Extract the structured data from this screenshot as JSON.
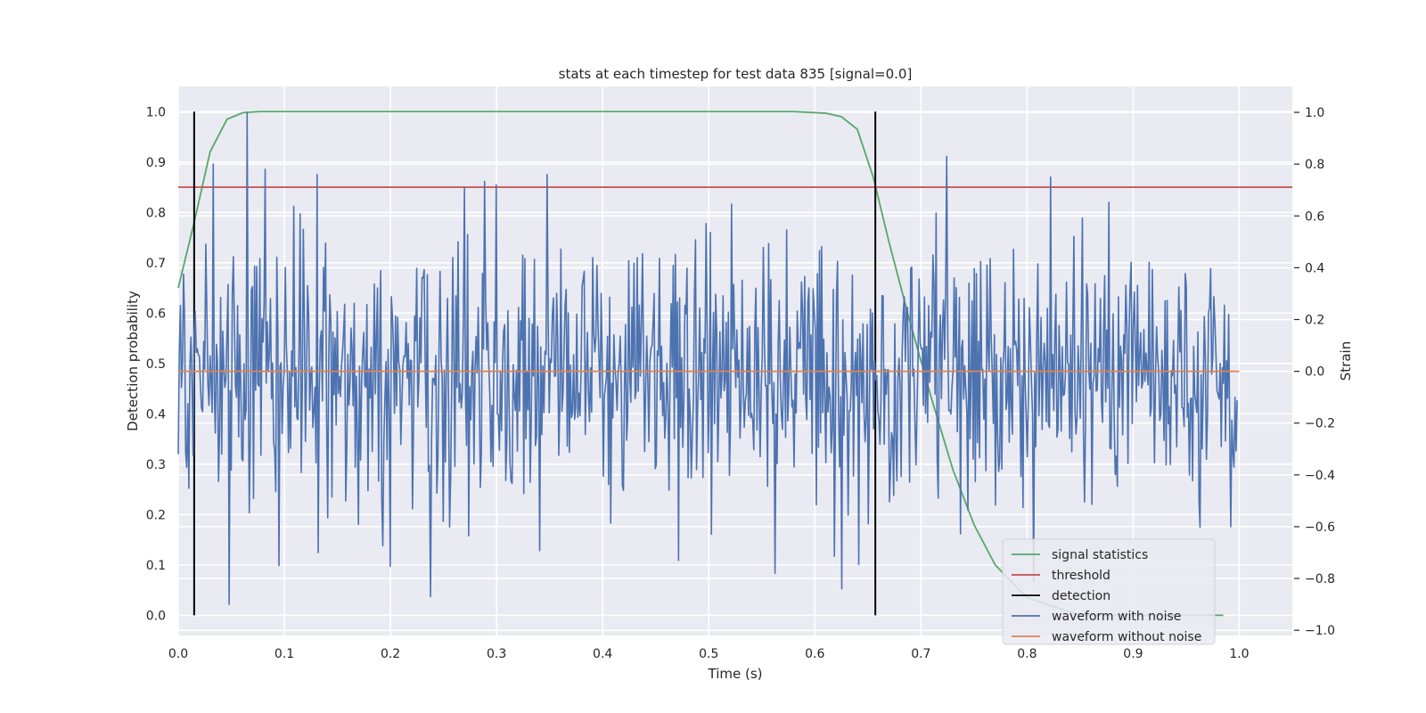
{
  "chart_data": {
    "type": "line",
    "title": "stats at each timestep for test data 835 [signal=0.0]",
    "xlabel": "Time (s)",
    "ylabel": "Detection probability",
    "ylabel_right": "Strain",
    "xlim": [
      0.0,
      1.05
    ],
    "ylim": [
      -0.04,
      1.05
    ],
    "ylim_right": [
      -1.02,
      1.1
    ],
    "x_ticks": [
      "0.0",
      "0.1",
      "0.2",
      "0.3",
      "0.4",
      "0.5",
      "0.6",
      "0.7",
      "0.8",
      "0.9",
      "1.0"
    ],
    "y_ticks": [
      "0.0",
      "0.1",
      "0.2",
      "0.3",
      "0.4",
      "0.5",
      "0.6",
      "0.7",
      "0.8",
      "0.9",
      "1.0"
    ],
    "y_ticks_right": [
      "−1.0",
      "−0.8",
      "−0.6",
      "−0.4",
      "−0.2",
      "0.0",
      "0.2",
      "0.4",
      "0.6",
      "0.8",
      "1.0"
    ],
    "grid": true,
    "legend_position": "lower-right",
    "colors": {
      "background": "#eaeaf2",
      "grid": "#ffffff",
      "signal": "#55a868",
      "threshold": "#c44e52",
      "detection": "#000000",
      "waveform_noise": "#4c72b0",
      "waveform_clean": "#dd8452"
    },
    "series": [
      {
        "name": "signal statistics",
        "axis": "left",
        "x": [
          0.0,
          0.015,
          0.03,
          0.046,
          0.061,
          0.076,
          0.1,
          0.2,
          0.3,
          0.4,
          0.5,
          0.58,
          0.61,
          0.625,
          0.64,
          0.655,
          0.67,
          0.69,
          0.71,
          0.73,
          0.75,
          0.77,
          0.8,
          0.85,
          0.9,
          0.95,
          0.985
        ],
        "y": [
          0.65,
          0.78,
          0.92,
          0.985,
          0.998,
          1.0,
          1.0,
          1.0,
          1.0,
          1.0,
          1.0,
          1.0,
          0.997,
          0.99,
          0.965,
          0.87,
          0.74,
          0.58,
          0.43,
          0.29,
          0.18,
          0.1,
          0.035,
          0.0,
          0.0,
          0.0,
          0.0
        ]
      },
      {
        "name": "threshold",
        "axis": "left",
        "x": [
          0.0,
          1.05
        ],
        "y": [
          0.85,
          0.85
        ]
      },
      {
        "name": "detection",
        "axis": "left",
        "type": "vlines",
        "x": [
          0.015,
          0.657
        ],
        "ymin": 0.0,
        "ymax": 1.0
      },
      {
        "name": "waveform with noise",
        "axis": "right",
        "x_start": 0.0,
        "x_end": 0.998,
        "n_points": 1000,
        "std": 0.25,
        "peaks": [
          {
            "x": 0.033,
            "y": 0.8
          },
          {
            "x": 0.048,
            "y": -0.9
          },
          {
            "x": 0.065,
            "y": 1.0
          },
          {
            "x": 0.082,
            "y": 0.78
          },
          {
            "x": 0.095,
            "y": -0.75
          },
          {
            "x": 0.131,
            "y": 0.76
          },
          {
            "x": 0.132,
            "y": -0.7
          },
          {
            "x": 0.238,
            "y": -0.87
          },
          {
            "x": 0.3,
            "y": 0.72
          },
          {
            "x": 0.348,
            "y": 0.76
          },
          {
            "x": 0.472,
            "y": -0.73
          },
          {
            "x": 0.562,
            "y": -0.78
          },
          {
            "x": 0.625,
            "y": -0.84
          },
          {
            "x": 0.822,
            "y": 0.75
          },
          {
            "x": 0.992,
            "y": -0.6
          }
        ]
      },
      {
        "name": "waveform without noise",
        "axis": "right",
        "x": [
          0.0,
          1.0
        ],
        "y": [
          0.0,
          0.0
        ]
      }
    ]
  }
}
